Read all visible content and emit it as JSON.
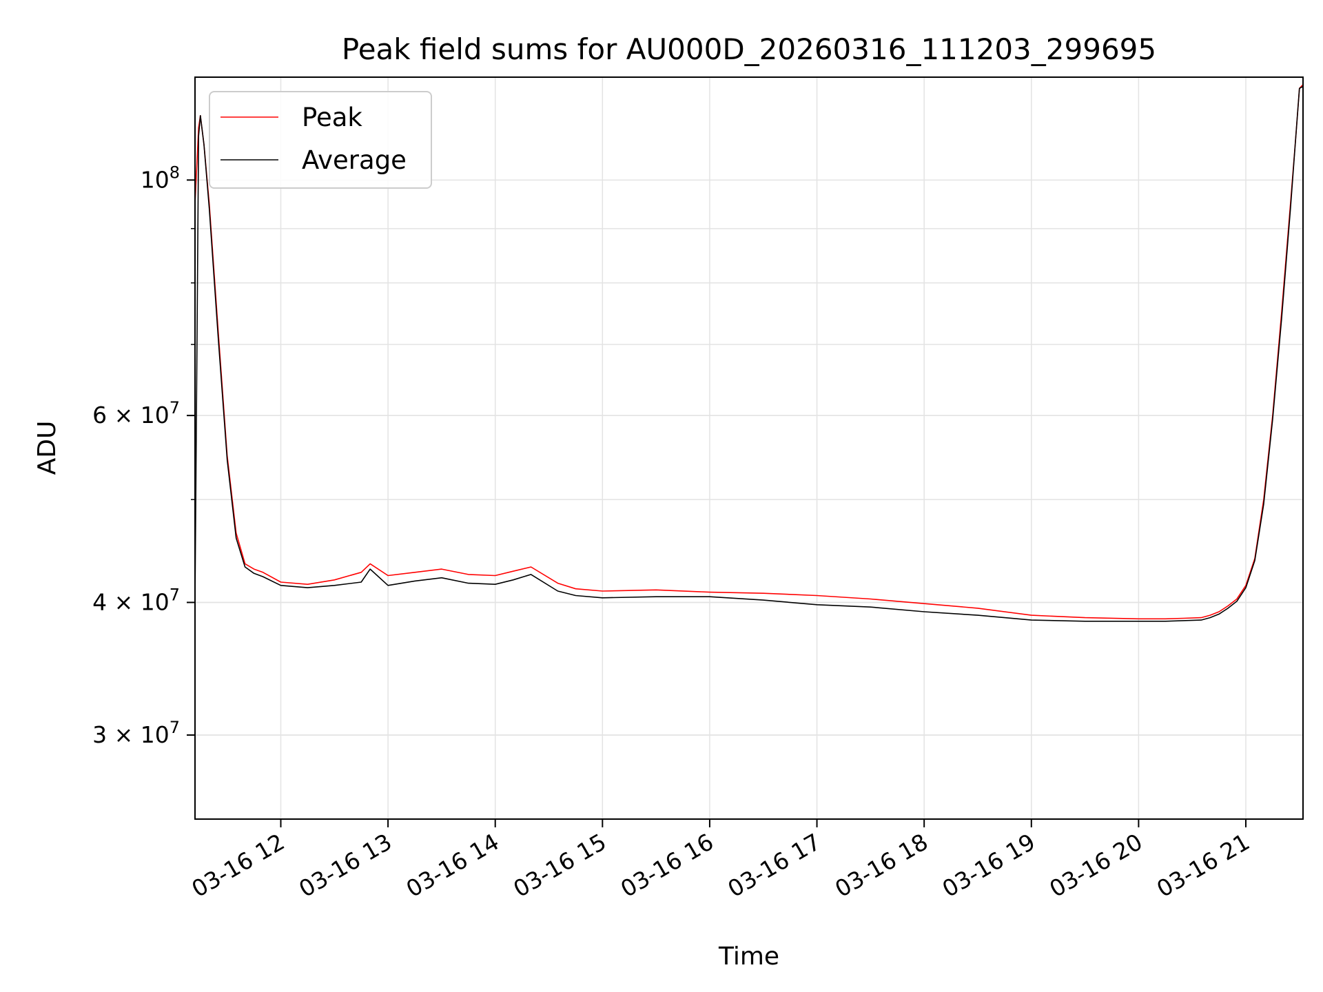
{
  "chart_data": {
    "type": "line",
    "title": "Peak field sums for AU000D_20260316_111203_299695",
    "xlabel": "Time",
    "ylabel": "ADU",
    "yscale": "log",
    "ylim": [
      25000000,
      125000000
    ],
    "xlim": [
      "2026-03-16 11:12",
      "2026-03-16 21:32"
    ],
    "grid": true,
    "legend_position": "upper-left",
    "x_ticks": [
      "03-16 12",
      "03-16 13",
      "03-16 14",
      "03-16 15",
      "03-16 16",
      "03-16 17",
      "03-16 18",
      "03-16 19",
      "03-16 20",
      "03-16 21"
    ],
    "y_major_tick_labels": [
      {
        "value": 100000000,
        "base": "10",
        "exp": "8"
      },
      {
        "value": 60000000,
        "base": "6 × 10",
        "exp": "7"
      },
      {
        "value": 40000000,
        "base": "4 × 10",
        "exp": "7"
      },
      {
        "value": 30000000,
        "base": "3 × 10",
        "exp": "7"
      }
    ],
    "series": [
      {
        "name": "Peak",
        "color": "#ff0000",
        "x": [
          "2026-03-16 11:12",
          "2026-03-16 11:14",
          "2026-03-16 11:15",
          "2026-03-16 11:17",
          "2026-03-16 11:20",
          "2026-03-16 11:25",
          "2026-03-16 11:30",
          "2026-03-16 11:35",
          "2026-03-16 11:40",
          "2026-03-16 11:45",
          "2026-03-16 11:50",
          "2026-03-16 12:00",
          "2026-03-16 12:15",
          "2026-03-16 12:30",
          "2026-03-16 12:45",
          "2026-03-16 12:50",
          "2026-03-16 13:00",
          "2026-03-16 13:15",
          "2026-03-16 13:30",
          "2026-03-16 13:45",
          "2026-03-16 14:00",
          "2026-03-16 14:10",
          "2026-03-16 14:20",
          "2026-03-16 14:35",
          "2026-03-16 14:45",
          "2026-03-16 15:00",
          "2026-03-16 15:30",
          "2026-03-16 16:00",
          "2026-03-16 16:30",
          "2026-03-16 17:00",
          "2026-03-16 17:30",
          "2026-03-16 18:00",
          "2026-03-16 18:30",
          "2026-03-16 19:00",
          "2026-03-16 19:30",
          "2026-03-16 20:00",
          "2026-03-16 20:15",
          "2026-03-16 20:25",
          "2026-03-16 20:35",
          "2026-03-16 20:40",
          "2026-03-16 20:45",
          "2026-03-16 20:50",
          "2026-03-16 20:55",
          "2026-03-16 21:00",
          "2026-03-16 21:05",
          "2026-03-16 21:10",
          "2026-03-16 21:15",
          "2026-03-16 21:20",
          "2026-03-16 21:25",
          "2026-03-16 21:28",
          "2026-03-16 21:30",
          "2026-03-16 21:32"
        ],
        "values": [
          95000000,
          112000000,
          115000000,
          108000000,
          95000000,
          72000000,
          55000000,
          46500000,
          43500000,
          43000000,
          42700000,
          41800000,
          41600000,
          42000000,
          42700000,
          43500000,
          42400000,
          42700000,
          43000000,
          42500000,
          42400000,
          42800000,
          43200000,
          41700000,
          41200000,
          41000000,
          41100000,
          40900000,
          40800000,
          40600000,
          40300000,
          39900000,
          39500000,
          38900000,
          38700000,
          38600000,
          38600000,
          38650000,
          38700000,
          38900000,
          39200000,
          39700000,
          40300000,
          41500000,
          44000000,
          50000000,
          60000000,
          75000000,
          95000000,
          110000000,
          122000000,
          123000000
        ]
      },
      {
        "name": "Average",
        "color": "#000000",
        "x": [
          "2026-03-16 11:12",
          "2026-03-16 11:14",
          "2026-03-16 11:15",
          "2026-03-16 11:17",
          "2026-03-16 11:20",
          "2026-03-16 11:25",
          "2026-03-16 11:30",
          "2026-03-16 11:35",
          "2026-03-16 11:40",
          "2026-03-16 11:45",
          "2026-03-16 11:50",
          "2026-03-16 12:00",
          "2026-03-16 12:15",
          "2026-03-16 12:30",
          "2026-03-16 12:45",
          "2026-03-16 12:50",
          "2026-03-16 13:00",
          "2026-03-16 13:15",
          "2026-03-16 13:30",
          "2026-03-16 13:45",
          "2026-03-16 14:00",
          "2026-03-16 14:10",
          "2026-03-16 14:20",
          "2026-03-16 14:35",
          "2026-03-16 14:45",
          "2026-03-16 15:00",
          "2026-03-16 15:30",
          "2026-03-16 16:00",
          "2026-03-16 16:30",
          "2026-03-16 17:00",
          "2026-03-16 17:30",
          "2026-03-16 18:00",
          "2026-03-16 18:30",
          "2026-03-16 19:00",
          "2026-03-16 19:30",
          "2026-03-16 20:00",
          "2026-03-16 20:15",
          "2026-03-16 20:25",
          "2026-03-16 20:35",
          "2026-03-16 20:40",
          "2026-03-16 20:45",
          "2026-03-16 20:50",
          "2026-03-16 20:55",
          "2026-03-16 21:00",
          "2026-03-16 21:05",
          "2026-03-16 21:10",
          "2026-03-16 21:15",
          "2026-03-16 21:20",
          "2026-03-16 21:25",
          "2026-03-16 21:28",
          "2026-03-16 21:30",
          "2026-03-16 21:32"
        ],
        "values": [
          40000000,
          110000000,
          115000000,
          108000000,
          94000000,
          71000000,
          54500000,
          46000000,
          43200000,
          42600000,
          42300000,
          41500000,
          41300000,
          41500000,
          41800000,
          43000000,
          41500000,
          41900000,
          42200000,
          41700000,
          41600000,
          42000000,
          42500000,
          41000000,
          40600000,
          40400000,
          40500000,
          40500000,
          40200000,
          39800000,
          39600000,
          39200000,
          38900000,
          38500000,
          38400000,
          38400000,
          38400000,
          38450000,
          38500000,
          38700000,
          39000000,
          39500000,
          40100000,
          41300000,
          43800000,
          49500000,
          59500000,
          74000000,
          94000000,
          110000000,
          122000000,
          122500000
        ]
      }
    ]
  }
}
